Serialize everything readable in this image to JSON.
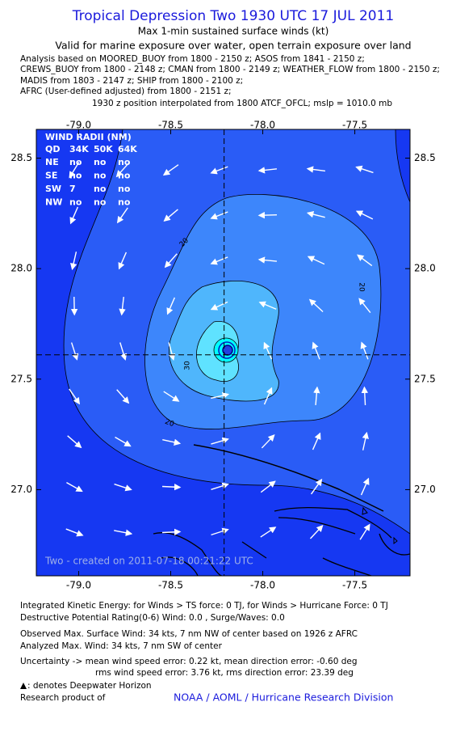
{
  "header": {
    "title": "Tropical Depression Two 1930 UTC 17 JUL 2011",
    "subtitle": "Max 1-min sustained surface winds (kt)",
    "validity": "Valid for marine exposure over water, open terrain exposure over land",
    "analysis_lines": [
      "Analysis based on MOORED_BUOY from 1800 - 2150 z; ASOS from 1841 - 2150 z;",
      "CREWS_BUOY from 1800 - 2148 z; CMAN from 1800 - 2149 z; WEATHER_FLOW from 1800 - 2150 z;",
      "MADIS from 1803 - 2147 z; SHIP from 1800 - 2100 z;",
      "AFRC (User-defined adjusted) from 1800 - 2151 z;"
    ],
    "position_note": "1930 z position interpolated from 1800 ATCF_OFCL; mslp = 1010.0 mb"
  },
  "map": {
    "xlim": [
      -79.23,
      -77.2
    ],
    "ylim": [
      26.61,
      28.63
    ],
    "xticks": [
      {
        "value": -79,
        "label": "-79.0"
      },
      -78.5,
      {
        "value": -78,
        "label": "-78.0"
      },
      -77.5
    ],
    "yticks": [
      {
        "value": 27,
        "label": "27.0"
      },
      27.5,
      {
        "value": 28,
        "label": "28.0"
      },
      28.5
    ],
    "storm_center": {
      "lon": -78.21,
      "lat": 27.61
    },
    "contour_labels": [
      20,
      20,
      20,
      30
    ],
    "created_note": "Two - created on 2011-07-18 00:21:22 UTC"
  },
  "wind_radii": {
    "title": "WIND RADII (NM)",
    "header": [
      "QD",
      "34K",
      "50K",
      "64K"
    ],
    "rows": [
      [
        "NE",
        "no",
        "no",
        "no"
      ],
      [
        "SE",
        "no",
        "no",
        "no"
      ],
      [
        "SW",
        7,
        "no",
        "no"
      ],
      [
        "NW",
        "no",
        "no",
        "no"
      ]
    ]
  },
  "footer": {
    "lines": [
      "Integrated Kinetic Energy:  for Winds > TS force: 0 TJ,  for Winds > Hurricane Force: 0 TJ",
      "Destructive Potential Rating(0-6)   Wind: 0.0 , Surge/Waves: 0.0",
      "Observed Max. Surface Wind: 34 kts, 7 nm NW of center based on 1926 z AFRC",
      "Analyzed Max. Wind: 34 kts, 7 nm SW of center",
      "Uncertainty -> mean wind speed error: 0.22 kt,   mean direction error:  -0.60 deg",
      "rms wind speed error: 3.76 kt,   rms direction error: 23.39 deg"
    ],
    "legend_note": ": denotes Deepwater Horizon",
    "credit_prefix": "Research product of",
    "credit": "NOAA / AOML / Hurricane Research Division"
  }
}
